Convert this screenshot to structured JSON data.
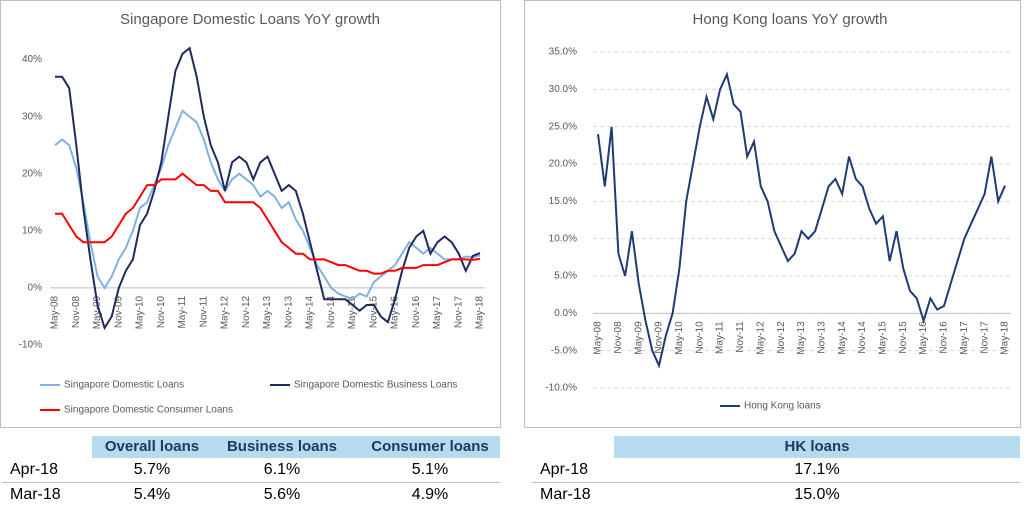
{
  "chart_data": [
    {
      "type": "line",
      "title": "Singapore Domestic Loans YoY growth",
      "categories": [
        "May-08",
        null,
        null,
        "Nov-08",
        null,
        null,
        "May-09",
        null,
        null,
        "Nov-09",
        null,
        null,
        "May-10",
        null,
        null,
        "Nov-10",
        null,
        null,
        "May-11",
        null,
        null,
        "Nov-11",
        null,
        null,
        "May-12",
        null,
        null,
        "Nov-12",
        null,
        null,
        "May-13",
        null,
        null,
        "Nov-13",
        null,
        null,
        "May-14",
        null,
        null,
        "Nov-14",
        null,
        null,
        "May-15",
        null,
        null,
        "Nov-15",
        null,
        null,
        "May-16",
        null,
        null,
        "Nov-16",
        null,
        null,
        "May-17",
        null,
        null,
        "Nov-17",
        null,
        null,
        "May-18"
      ],
      "series": [
        {
          "name": "Singapore Domestic Loans",
          "color": "#7fb2e0",
          "values": [
            25,
            26,
            25,
            21,
            15,
            8,
            2,
            0,
            2,
            5,
            7,
            10,
            14,
            15,
            18,
            21,
            25,
            28,
            31,
            30,
            29,
            26,
            22,
            19,
            17,
            19,
            20,
            19,
            18,
            16,
            17,
            16,
            14,
            15,
            12,
            10,
            7,
            4,
            2,
            0,
            -1,
            -1.5,
            -2,
            -1,
            -1.5,
            1,
            2,
            3,
            4,
            6,
            8,
            7,
            6,
            7,
            6,
            5,
            5,
            5,
            5.5,
            5.4,
            5.7
          ]
        },
        {
          "name": "Singapore Domestic Business Loans",
          "color": "#1f2a5e",
          "values": [
            37,
            37,
            35,
            25,
            14,
            5,
            -3,
            -7,
            -5,
            0,
            3,
            5,
            11,
            13,
            17,
            22,
            30,
            38,
            41,
            42,
            37,
            30,
            25,
            22,
            17,
            22,
            23,
            22,
            19,
            22,
            23,
            20,
            17,
            18,
            17,
            13,
            8,
            3,
            -2,
            -2,
            -2,
            -2,
            -3,
            -4,
            -3,
            -3,
            -5,
            -6,
            -2,
            3,
            7,
            9,
            10,
            6,
            8,
            9,
            8,
            6,
            3,
            5.6,
            6.1
          ]
        },
        {
          "name": "Singapore Domestic Consumer Loans",
          "color": "#ff0000",
          "values": [
            13,
            13,
            11,
            9,
            8,
            8,
            8,
            8,
            9,
            11,
            13,
            14,
            16,
            18,
            18,
            19,
            19,
            19,
            20,
            19,
            18,
            18,
            17,
            17,
            15,
            15,
            15,
            15,
            15,
            14,
            12,
            10,
            8,
            7,
            6,
            6,
            5,
            5,
            5,
            4.5,
            4,
            4,
            3.5,
            3,
            3,
            2.5,
            2.5,
            3,
            3,
            3.5,
            3.5,
            3.5,
            4,
            4,
            4,
            4.5,
            5,
            5,
            5,
            4.9,
            5.1
          ]
        }
      ],
      "ylim": [
        -10,
        45
      ],
      "yticks": [
        {
          "value": -10,
          "label": "-10%"
        },
        {
          "value": 0,
          "label": "0%"
        },
        {
          "value": 10,
          "label": "10%"
        },
        {
          "value": 20,
          "label": "20%"
        },
        {
          "value": 30,
          "label": "30%"
        },
        {
          "value": 40,
          "label": "40%"
        }
      ],
      "grid": false,
      "legend": "bottom"
    },
    {
      "type": "line",
      "title": "Hong Kong loans YoY growth",
      "categories": [
        "May-08",
        null,
        null,
        "Nov-08",
        null,
        null,
        "May-09",
        null,
        null,
        "Nov-09",
        null,
        null,
        "May-10",
        null,
        null,
        "Nov-10",
        null,
        null,
        "May-11",
        null,
        null,
        "Nov-11",
        null,
        null,
        "May-12",
        null,
        null,
        "Nov-12",
        null,
        null,
        "May-13",
        null,
        null,
        "Nov-13",
        null,
        null,
        "May-14",
        null,
        null,
        "Nov-14",
        null,
        null,
        "May-15",
        null,
        null,
        "Nov-15",
        null,
        null,
        "May-16",
        null,
        null,
        "Nov-16",
        null,
        null,
        "May-17",
        null,
        null,
        "Nov-17",
        null,
        null,
        "May-18"
      ],
      "series": [
        {
          "name": "Hong Kong loans",
          "color": "#1f3b73",
          "values": [
            24,
            17,
            25,
            8,
            5,
            11,
            4,
            -1,
            -5,
            -7,
            -3,
            0,
            6,
            15,
            20,
            25,
            29,
            26,
            30,
            32,
            28,
            27,
            21,
            23,
            17,
            15,
            11,
            9,
            7,
            8,
            11,
            10,
            11,
            14,
            17,
            18,
            16,
            21,
            18,
            17,
            14,
            12,
            13,
            7,
            11,
            6,
            3,
            2,
            -1,
            2,
            0.5,
            1,
            4,
            7,
            10,
            12,
            14,
            16,
            21,
            15,
            17.1
          ]
        }
      ],
      "ylim": [
        -10,
        35
      ],
      "yticks": [
        {
          "value": -10,
          "label": "-10.0%"
        },
        {
          "value": -5,
          "label": "-5.0%"
        },
        {
          "value": 0,
          "label": "0.0%"
        },
        {
          "value": 5,
          "label": "5.0%"
        },
        {
          "value": 10,
          "label": "10.0%"
        },
        {
          "value": 15,
          "label": "15.0%"
        },
        {
          "value": 20,
          "label": "20.0%"
        },
        {
          "value": 25,
          "label": "25.0%"
        },
        {
          "value": 30,
          "label": "30.0%"
        },
        {
          "value": 35,
          "label": "35.0%"
        }
      ],
      "grid": true,
      "legend": "bottom"
    }
  ],
  "tables": [
    {
      "header": [
        "Overall loans",
        "Business loans",
        "Consumer loans"
      ],
      "rows": [
        [
          "Apr-18",
          "5.7%",
          "6.1%",
          "5.1%"
        ],
        [
          "Mar-18",
          "5.4%",
          "5.6%",
          "4.9%"
        ]
      ]
    },
    {
      "header": [
        "HK loans"
      ],
      "rows": [
        [
          "Apr-18",
          "17.1%"
        ],
        [
          "Mar-18",
          "15.0%"
        ]
      ]
    }
  ]
}
